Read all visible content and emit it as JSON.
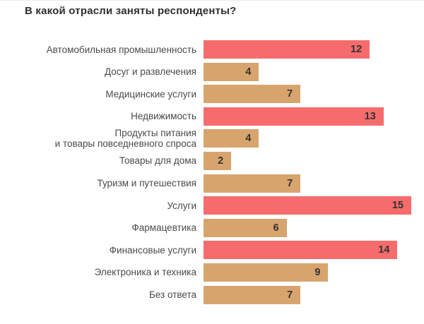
{
  "page": {
    "title": "В какой отрасли заняты респонденты?"
  },
  "colors": {
    "highlight": "#f66c6c",
    "base": "#d8a46e",
    "title_text": "#2e2e2e",
    "label_text": "#4a4a4a",
    "value_text": "#333333",
    "background": "#ffffff"
  },
  "chart_data": {
    "type": "bar",
    "orientation": "horizontal",
    "title": "В какой отрасли заняты респонденты?",
    "xlim": [
      0,
      15
    ],
    "grid": false,
    "legend": "none",
    "value_labels": "inside-end",
    "categories": [
      "Автомобильная промышленность",
      "Досуг и развлечения",
      "Медицинские услуги",
      "Недвижимость",
      "Продукты питания\nи товары повседневного спроса",
      "Товары для дома",
      "Туризм и путешествия",
      "Услуги",
      "Фармацевтика",
      "Финансовые услуги",
      "Электроника и техника",
      "Без ответа"
    ],
    "values": [
      12,
      4,
      7,
      13,
      4,
      2,
      7,
      15,
      6,
      14,
      9,
      7
    ],
    "bar_colors": [
      "highlight",
      "base",
      "base",
      "highlight",
      "base",
      "base",
      "base",
      "highlight",
      "base",
      "highlight",
      "base",
      "base"
    ]
  }
}
